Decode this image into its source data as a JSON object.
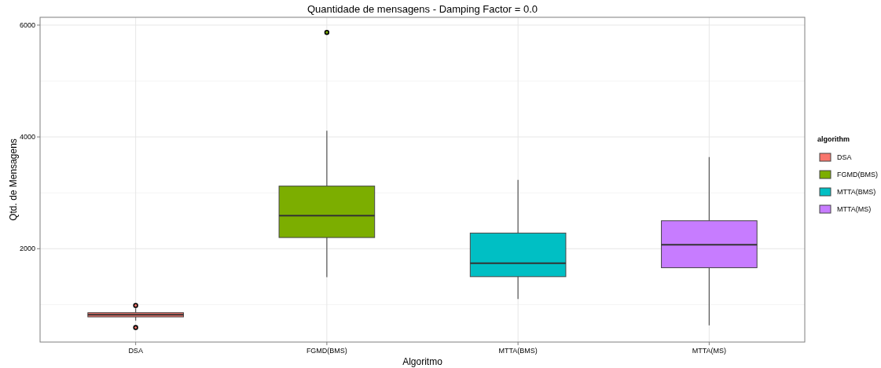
{
  "chart_data": {
    "type": "box",
    "title": "Quantidade de mensagens - Damping Factor = 0.0",
    "xlabel": "Algoritmo",
    "ylabel": "Qtd. de Mensagens",
    "legend_title": "algorithm",
    "categories": [
      "DSA",
      "FGMD(BMS)",
      "MTTA(BMS)",
      "MTTA(MS)"
    ],
    "series": [
      {
        "name": "DSA",
        "color": "#f8766d",
        "boxes": [
          {
            "low": 715,
            "q1": 780,
            "median": 820,
            "q3": 855,
            "high": 930,
            "outliers": [
              985,
              590
            ]
          },
          null,
          null,
          null
        ]
      },
      {
        "name": "FGMD(BMS)",
        "color": "#7cae00",
        "boxes": [
          null,
          {
            "low": 1490,
            "q1": 2200,
            "median": 2590,
            "q3": 3120,
            "high": 4110,
            "outliers": [
              5870
            ]
          },
          null,
          null
        ]
      },
      {
        "name": "MTTA(BMS)",
        "color": "#00bfc4",
        "boxes": [
          null,
          null,
          {
            "low": 1100,
            "q1": 1500,
            "median": 1740,
            "q3": 2280,
            "high": 3230
          },
          null
        ]
      },
      {
        "name": "MTTA(MS)",
        "color": "#c77cff",
        "boxes": [
          null,
          null,
          null,
          {
            "low": 630,
            "q1": 1660,
            "median": 2070,
            "q3": 2500,
            "high": 3640
          }
        ]
      }
    ],
    "ylim": [
      330,
      6140
    ],
    "yticks": [
      2000,
      4000,
      6000
    ],
    "grid": true,
    "legend": "right"
  }
}
